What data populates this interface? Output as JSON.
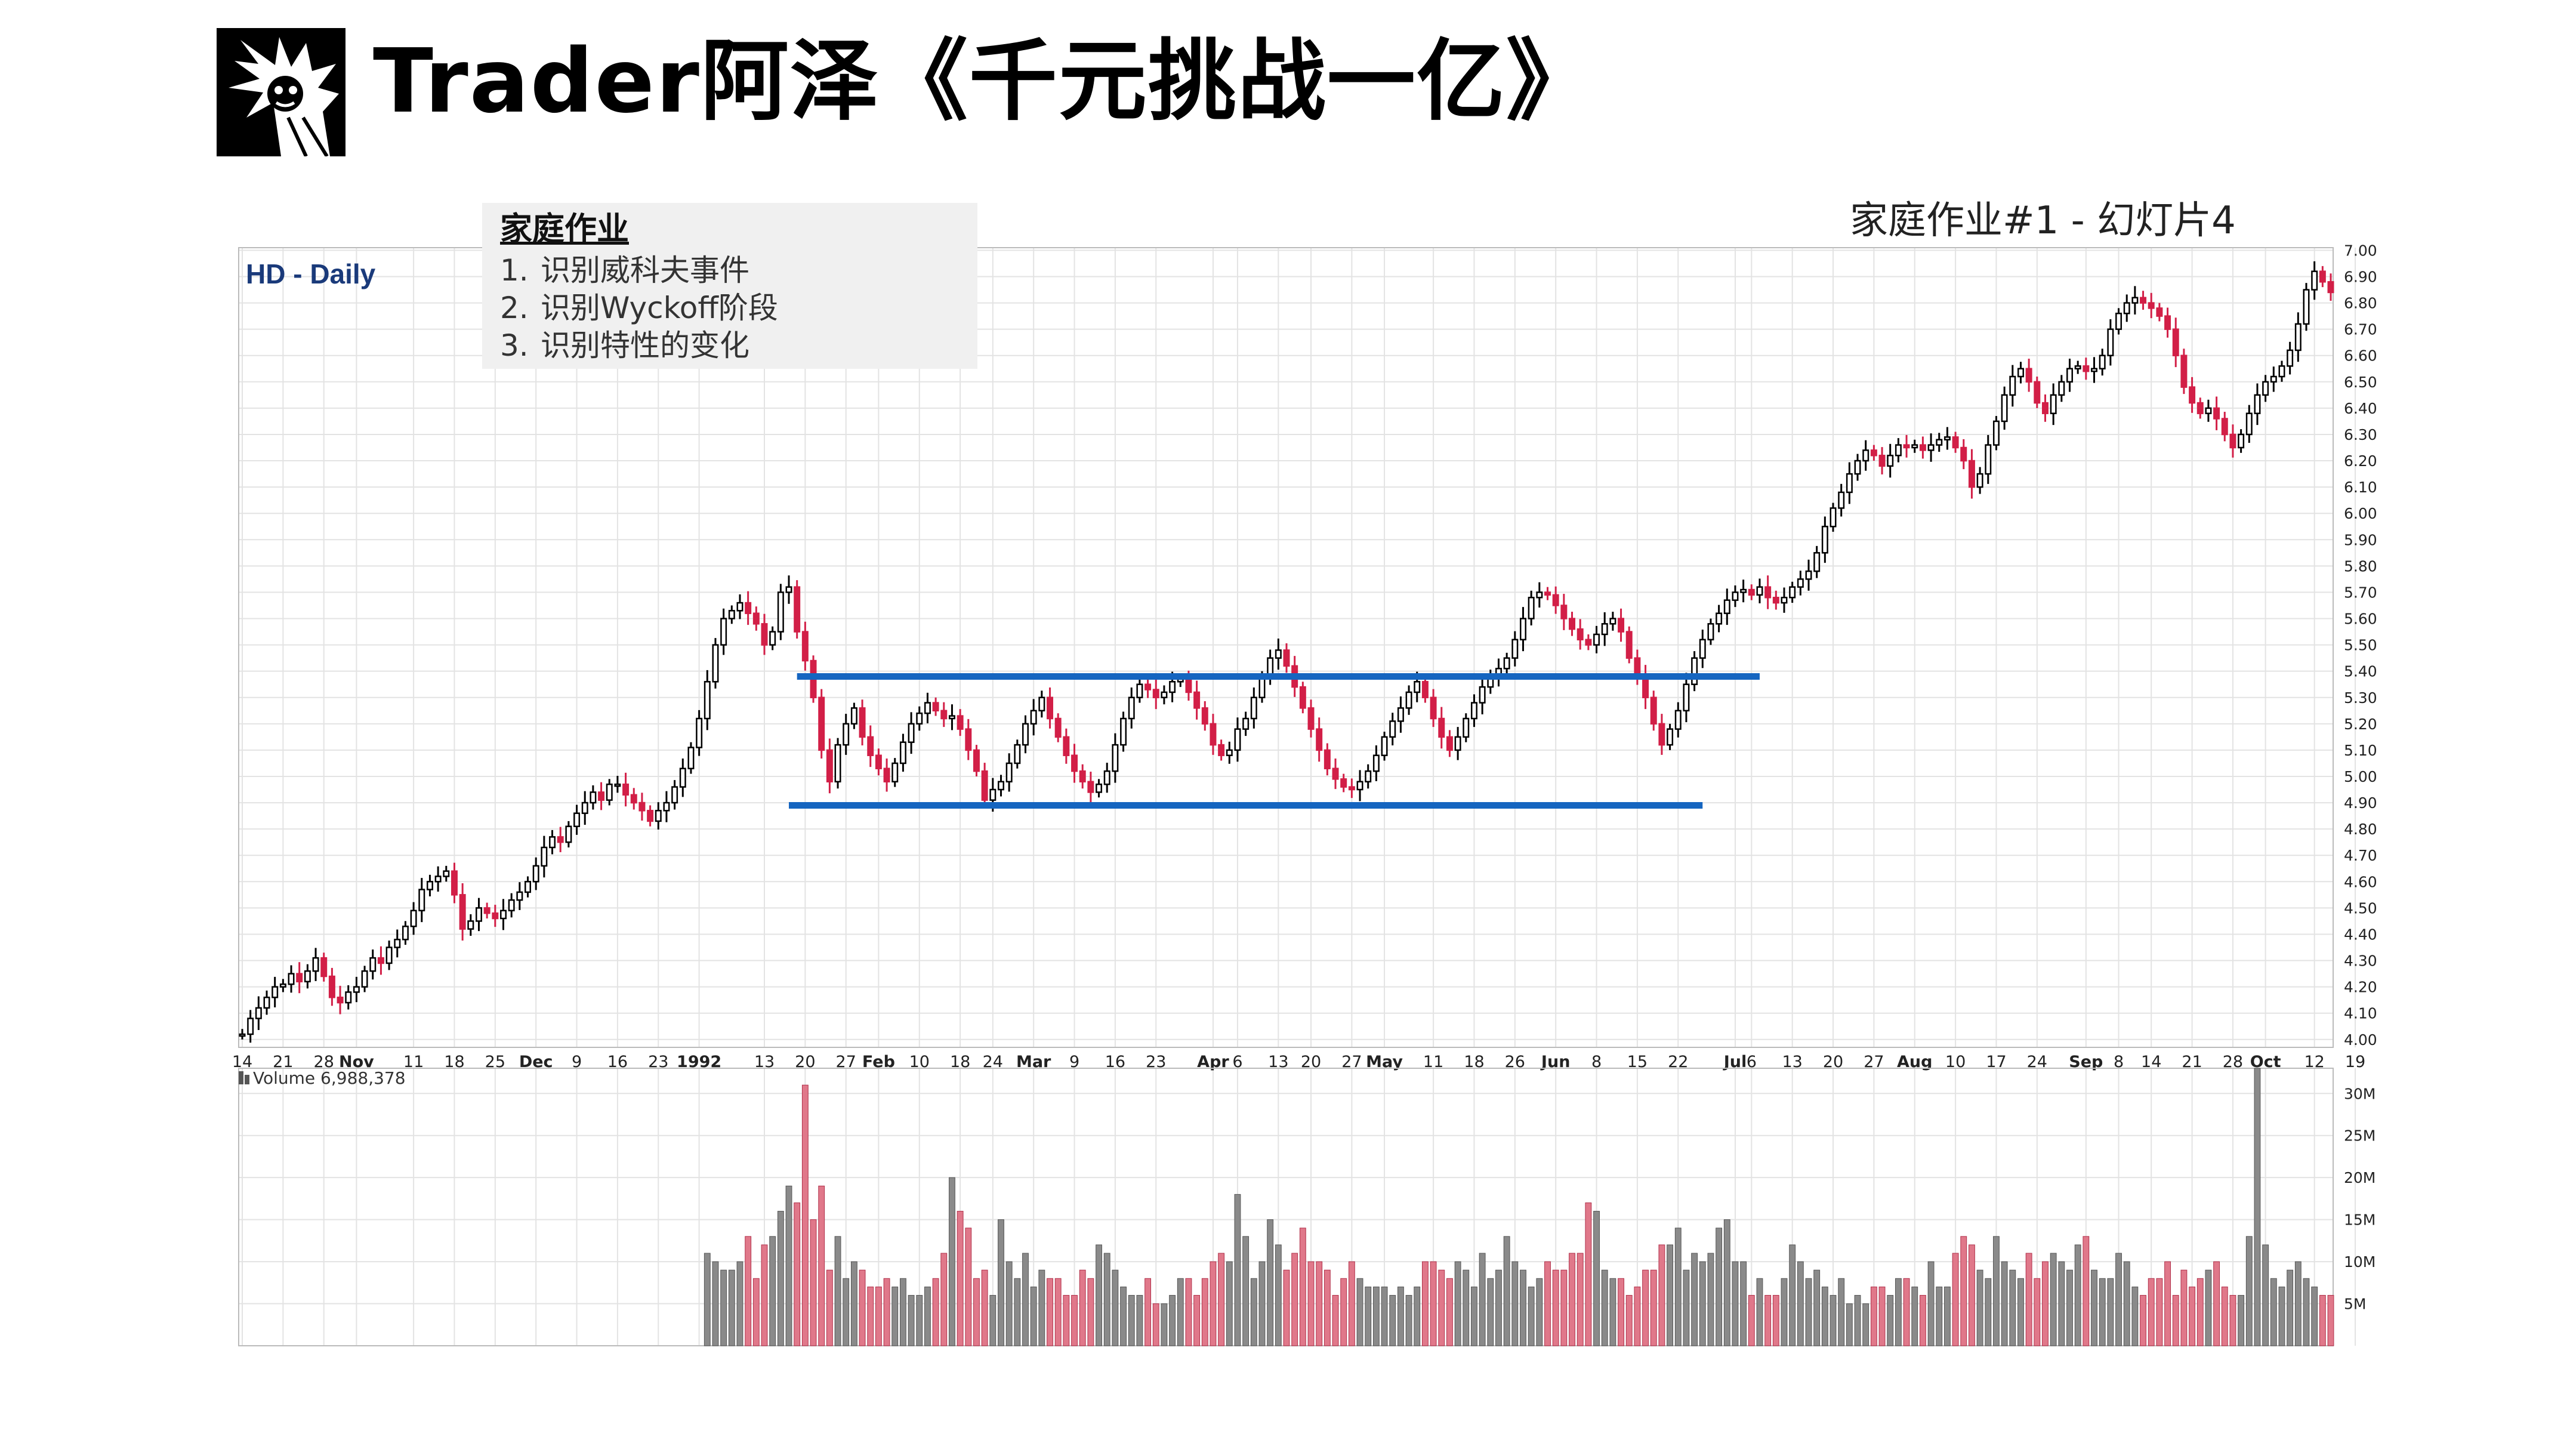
{
  "header": {
    "logo_icon": "cartoon-character-logo-icon",
    "title": "Trader阿泽《千元挑战一亿》",
    "slide_label": "家庭作业#1 - 幻灯片4"
  },
  "homework": {
    "title": "家庭作业",
    "items": [
      {
        "num": "1.",
        "text": "识别威科夫事件"
      },
      {
        "num": "2.",
        "text": "识别Wyckoff阶段"
      },
      {
        "num": "3.",
        "text": "识别特性的变化"
      }
    ]
  },
  "chart_data": {
    "type": "candlestick",
    "title": "HD - Daily",
    "colors": {
      "up": "#ffffff",
      "down": "#d21f47",
      "outline": "#000000",
      "volume_up": "#8a8a8a",
      "volume_down": "#e0788a",
      "channel": "#1565c0",
      "grid": "#e3e3e3"
    },
    "price_axis": {
      "min": 3.97,
      "max": 7.01,
      "ticks": [
        "7.00",
        "6.90",
        "6.80",
        "6.70",
        "6.60",
        "6.50",
        "6.40",
        "6.30",
        "6.20",
        "6.10",
        "6.00",
        "5.90",
        "5.80",
        "5.70",
        "5.60",
        "5.50",
        "5.40",
        "5.30",
        "5.20",
        "5.10",
        "5.00",
        "4.90",
        "4.80",
        "4.70",
        "4.60",
        "4.50",
        "4.40",
        "4.30",
        "4.20",
        "4.10",
        "4.00"
      ]
    },
    "x_axis_labels": [
      {
        "text": "14",
        "i": 0
      },
      {
        "text": "21",
        "i": 5
      },
      {
        "text": "28",
        "i": 10
      },
      {
        "text": "Nov",
        "i": 14,
        "bold": true
      },
      {
        "text": "11",
        "i": 21
      },
      {
        "text": "18",
        "i": 26
      },
      {
        "text": "25",
        "i": 31
      },
      {
        "text": "Dec",
        "i": 36,
        "bold": true
      },
      {
        "text": "9",
        "i": 41
      },
      {
        "text": "16",
        "i": 46
      },
      {
        "text": "23",
        "i": 51
      },
      {
        "text": "1992",
        "i": 56,
        "bold": true
      },
      {
        "text": "13",
        "i": 64
      },
      {
        "text": "20",
        "i": 69
      },
      {
        "text": "27",
        "i": 74
      },
      {
        "text": "Feb",
        "i": 78,
        "bold": true
      },
      {
        "text": "10",
        "i": 83
      },
      {
        "text": "18",
        "i": 88
      },
      {
        "text": "24",
        "i": 92
      },
      {
        "text": "Mar",
        "i": 97,
        "bold": true
      },
      {
        "text": "9",
        "i": 102
      },
      {
        "text": "16",
        "i": 107
      },
      {
        "text": "23",
        "i": 112
      },
      {
        "text": "Apr",
        "i": 119,
        "bold": true
      },
      {
        "text": "6",
        "i": 122
      },
      {
        "text": "13",
        "i": 127
      },
      {
        "text": "20",
        "i": 131
      },
      {
        "text": "27",
        "i": 136
      },
      {
        "text": "May",
        "i": 140,
        "bold": true
      },
      {
        "text": "11",
        "i": 146
      },
      {
        "text": "18",
        "i": 151
      },
      {
        "text": "26",
        "i": 156
      },
      {
        "text": "Jun",
        "i": 161,
        "bold": true
      },
      {
        "text": "8",
        "i": 166
      },
      {
        "text": "15",
        "i": 171
      },
      {
        "text": "22",
        "i": 176
      },
      {
        "text": "Jul",
        "i": 183,
        "bold": true
      },
      {
        "text": "6",
        "i": 185
      },
      {
        "text": "13",
        "i": 190
      },
      {
        "text": "20",
        "i": 195
      },
      {
        "text": "27",
        "i": 200
      },
      {
        "text": "Aug",
        "i": 205,
        "bold": true
      },
      {
        "text": "10",
        "i": 210
      },
      {
        "text": "17",
        "i": 215
      },
      {
        "text": "24",
        "i": 220
      },
      {
        "text": "Sep",
        "i": 226,
        "bold": true
      },
      {
        "text": "8",
        "i": 230
      },
      {
        "text": "14",
        "i": 234
      },
      {
        "text": "21",
        "i": 239
      },
      {
        "text": "28",
        "i": 244
      },
      {
        "text": "Oct",
        "i": 248,
        "bold": true
      },
      {
        "text": "12",
        "i": 254
      },
      {
        "text": "19",
        "i": 259
      }
    ],
    "volume_label": "Volume 6,988,378",
    "volume_axis": {
      "min": 0,
      "max": 33,
      "ticks": [
        {
          "text": "30M",
          "v": 30
        },
        {
          "text": "25M",
          "v": 25
        },
        {
          "text": "20M",
          "v": 20
        },
        {
          "text": "15M",
          "v": 15
        },
        {
          "text": "10M",
          "v": 10
        },
        {
          "text": "5M",
          "v": 5
        }
      ]
    },
    "channel": {
      "upper": 5.38,
      "lower": 4.89,
      "upper_from": 68,
      "upper_to": 186,
      "lower_from": 67,
      "lower_to": 179
    },
    "start_close": 4.02,
    "volume_start_index": 57,
    "closes": [
      4.02,
      4.08,
      4.12,
      4.16,
      4.2,
      4.21,
      4.25,
      4.22,
      4.26,
      4.31,
      4.24,
      4.16,
      4.14,
      4.18,
      4.2,
      4.26,
      4.31,
      4.29,
      4.35,
      4.38,
      4.43,
      4.49,
      4.57,
      4.6,
      4.62,
      4.64,
      4.55,
      4.42,
      4.45,
      4.5,
      4.48,
      4.46,
      4.49,
      4.53,
      4.56,
      4.6,
      4.66,
      4.73,
      4.77,
      4.75,
      4.81,
      4.86,
      4.9,
      4.94,
      4.91,
      4.97,
      4.97,
      4.93,
      4.9,
      4.87,
      4.83,
      4.87,
      4.9,
      4.96,
      5.03,
      5.11,
      5.22,
      5.36,
      5.5,
      5.6,
      5.63,
      5.66,
      5.62,
      5.58,
      5.5,
      5.55,
      5.7,
      5.72,
      5.55,
      5.44,
      5.3,
      5.1,
      4.98,
      5.12,
      5.2,
      5.26,
      5.15,
      5.08,
      5.03,
      4.98,
      5.05,
      5.13,
      5.2,
      5.24,
      5.28,
      5.25,
      5.22,
      5.23,
      5.18,
      5.1,
      5.02,
      4.91,
      4.95,
      4.98,
      5.05,
      5.12,
      5.2,
      5.25,
      5.3,
      5.22,
      5.15,
      5.08,
      5.02,
      4.98,
      4.94,
      4.97,
      5.02,
      5.12,
      5.22,
      5.3,
      5.35,
      5.33,
      5.3,
      5.32,
      5.36,
      5.37,
      5.32,
      5.26,
      5.2,
      5.12,
      5.08,
      5.1,
      5.18,
      5.22,
      5.3,
      5.38,
      5.45,
      5.48,
      5.42,
      5.34,
      5.26,
      5.18,
      5.1,
      5.03,
      4.99,
      4.96,
      4.95,
      4.98,
      5.02,
      5.08,
      5.15,
      5.21,
      5.26,
      5.32,
      5.36,
      5.3,
      5.22,
      5.15,
      5.1,
      5.15,
      5.22,
      5.28,
      5.34,
      5.38,
      5.41,
      5.45,
      5.52,
      5.6,
      5.68,
      5.7,
      5.69,
      5.65,
      5.6,
      5.56,
      5.52,
      5.5,
      5.54,
      5.58,
      5.6,
      5.55,
      5.45,
      5.38,
      5.3,
      5.2,
      5.12,
      5.18,
      5.25,
      5.35,
      5.45,
      5.52,
      5.58,
      5.62,
      5.67,
      5.7,
      5.71,
      5.69,
      5.72,
      5.68,
      5.66,
      5.68,
      5.72,
      5.75,
      5.78,
      5.85,
      5.95,
      6.02,
      6.08,
      6.15,
      6.2,
      6.24,
      6.22,
      6.18,
      6.22,
      6.26,
      6.25,
      6.26,
      6.24,
      6.26,
      6.28,
      6.29,
      6.25,
      6.2,
      6.1,
      6.15,
      6.26,
      6.35,
      6.45,
      6.52,
      6.55,
      6.5,
      6.42,
      6.38,
      6.45,
      6.5,
      6.55,
      6.56,
      6.54,
      6.55,
      6.6,
      6.7,
      6.76,
      6.8,
      6.82,
      6.8,
      6.78,
      6.75,
      6.7,
      6.6,
      6.48,
      6.42,
      6.38,
      6.4,
      6.36,
      6.3,
      6.25,
      6.3,
      6.38,
      6.45,
      6.5,
      6.52,
      6.56,
      6.62,
      6.72,
      6.85,
      6.92,
      6.88,
      6.84
    ],
    "volumes": [
      11,
      10,
      9,
      9,
      10,
      13,
      8,
      12,
      13,
      16,
      19,
      17,
      31,
      15,
      19,
      9,
      13,
      8,
      10,
      9,
      7,
      7,
      8,
      7,
      8,
      6,
      6,
      7,
      8,
      11,
      20,
      16,
      14,
      8,
      9,
      6,
      15,
      10,
      8,
      11,
      7,
      9,
      8,
      8,
      6,
      6,
      9,
      8,
      12,
      11,
      9,
      7,
      6,
      6,
      8,
      5,
      5,
      6,
      8,
      8,
      6,
      8,
      10,
      11,
      10,
      18,
      13,
      8,
      10,
      15,
      12,
      9,
      11,
      14,
      10,
      10,
      9,
      6,
      8,
      10,
      8,
      7,
      7,
      7,
      6,
      7,
      6,
      7,
      10,
      10,
      9,
      8,
      10,
      9,
      7,
      11,
      8,
      9,
      13,
      10,
      9,
      7,
      8,
      10,
      9,
      9,
      11,
      11,
      17,
      16,
      9,
      8,
      8,
      6,
      7,
      9,
      9,
      12,
      12,
      14,
      9,
      11,
      10,
      11,
      14,
      15,
      10,
      10,
      6,
      8,
      6,
      6,
      8,
      12,
      10,
      8,
      9,
      7,
      6,
      8,
      5,
      6,
      5,
      7,
      7,
      6,
      8,
      8,
      7,
      6,
      10,
      7,
      7,
      11,
      13,
      12,
      9,
      8,
      13,
      10,
      9,
      8,
      11,
      8,
      10,
      11,
      10,
      9,
      12,
      13,
      9,
      8,
      8,
      11,
      10,
      7,
      6,
      8,
      8,
      10,
      6,
      9,
      7,
      8,
      9,
      10,
      7,
      6,
      6,
      13,
      33,
      12,
      8,
      7,
      9,
      10,
      8,
      7,
      6,
      6,
      6,
      7,
      11,
      9,
      11,
      12,
      11,
      7
    ]
  }
}
